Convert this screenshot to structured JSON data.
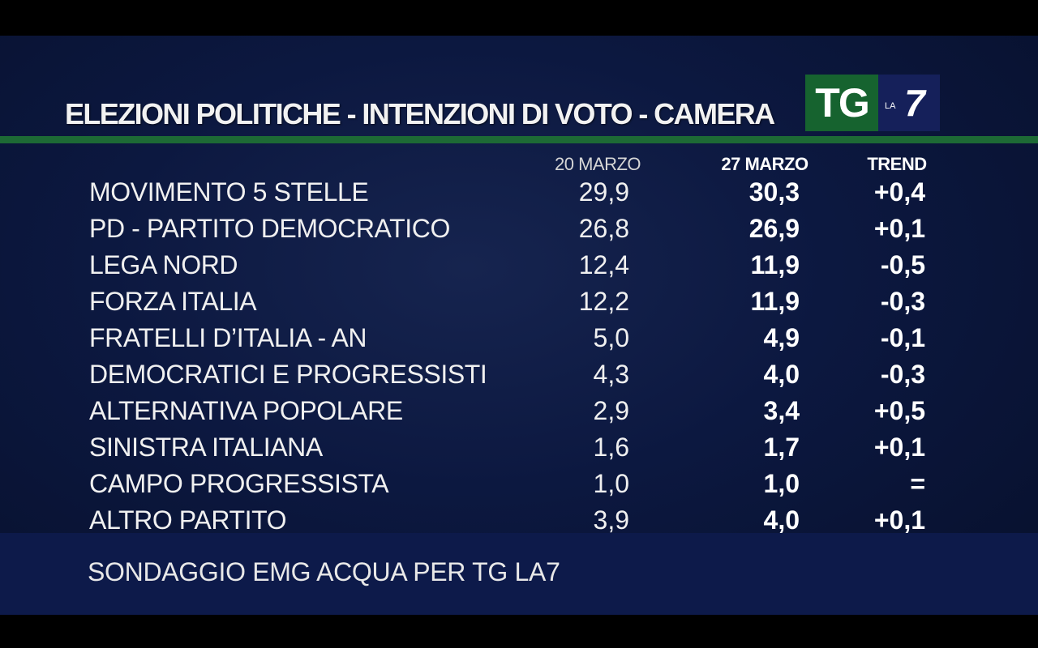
{
  "title": "ELEZIONI POLITICHE - INTENZIONI DI VOTO - CAMERA",
  "logo": {
    "tg": "TG",
    "la": "LA",
    "seven": "7"
  },
  "columns": {
    "prev": "20 MARZO",
    "curr": "27 MARZO",
    "trend": "TREND"
  },
  "source": "SONDAGGIO EMG ACQUA PER TG LA7",
  "colors": {
    "background": "#0c1840",
    "accent_green": "#1d6a35",
    "footer": "#0d1a4a",
    "text": "#f0f0f0"
  },
  "chart_data": {
    "type": "table",
    "title": "ELEZIONI POLITICHE - INTENZIONI DI VOTO - CAMERA",
    "headers": [
      "",
      "20 MARZO",
      "27 MARZO",
      "TREND"
    ],
    "rows": [
      {
        "party": "MOVIMENTO 5 STELLE",
        "prev": "29,9",
        "curr": "30,3",
        "trend": "+0,4"
      },
      {
        "party": "PD - PARTITO DEMOCRATICO",
        "prev": "26,8",
        "curr": "26,9",
        "trend": "+0,1"
      },
      {
        "party": "LEGA NORD",
        "prev": "12,4",
        "curr": "11,9",
        "trend": "-0,5"
      },
      {
        "party": "FORZA ITALIA",
        "prev": "12,2",
        "curr": "11,9",
        "trend": "-0,3"
      },
      {
        "party": "FRATELLI D’ITALIA - AN",
        "prev": "5,0",
        "curr": "4,9",
        "trend": "-0,1"
      },
      {
        "party": "DEMOCRATICI E PROGRESSISTI",
        "prev": "4,3",
        "curr": "4,0",
        "trend": "-0,3"
      },
      {
        "party": "ALTERNATIVA POPOLARE",
        "prev": "2,9",
        "curr": "3,4",
        "trend": "+0,5"
      },
      {
        "party": "SINISTRA ITALIANA",
        "prev": "1,6",
        "curr": "1,7",
        "trend": "+0,1"
      },
      {
        "party": "CAMPO PROGRESSISTA",
        "prev": "1,0",
        "curr": "1,0",
        "trend": "="
      },
      {
        "party": "ALTRO PARTITO",
        "prev": "3,9",
        "curr": "4,0",
        "trend": "+0,1"
      }
    ]
  }
}
